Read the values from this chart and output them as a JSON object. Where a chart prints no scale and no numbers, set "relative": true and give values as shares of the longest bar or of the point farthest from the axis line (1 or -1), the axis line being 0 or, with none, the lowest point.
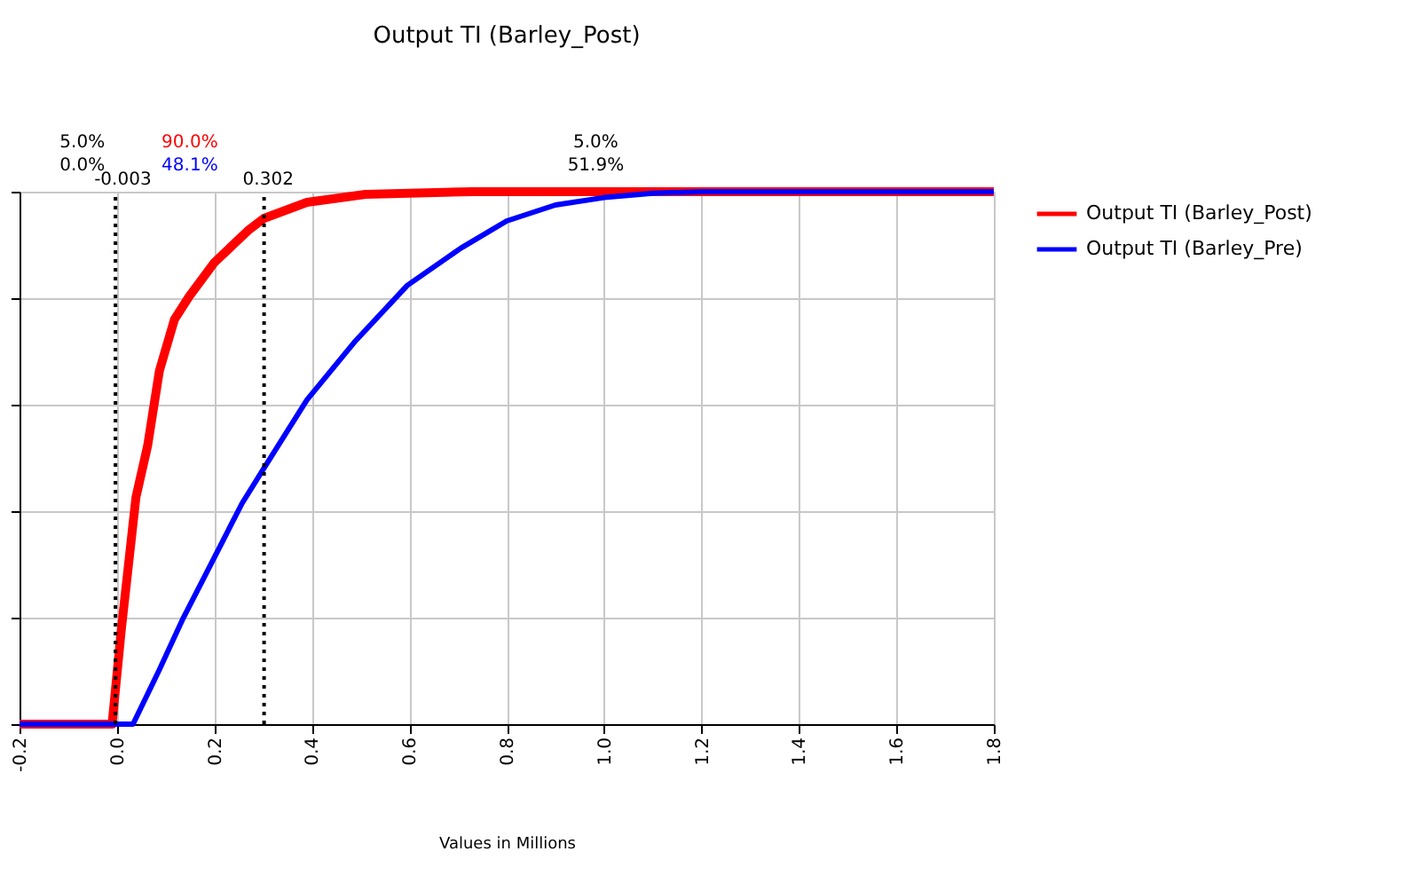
{
  "chart_data": {
    "type": "line",
    "title": "Output TI (Barley_Post)",
    "xlabel": "Values in Millions",
    "xlim": [
      -0.2,
      1.8
    ],
    "xticks": [
      {
        "value": -0.2,
        "label": "-0.2"
      },
      {
        "value": 0,
        "label": "0.0"
      },
      {
        "value": 0.2,
        "label": "0.2"
      },
      {
        "value": 0.4,
        "label": "0.4"
      },
      {
        "value": 0.6,
        "label": "0.6"
      },
      {
        "value": 0.8,
        "label": "0.8"
      },
      {
        "value": 1.0,
        "label": "1.0"
      },
      {
        "value": 1.2,
        "label": "1.2"
      },
      {
        "value": 1.4,
        "label": "1.4"
      },
      {
        "value": 1.6,
        "label": "1.6"
      },
      {
        "value": 1.8,
        "label": "1.8"
      }
    ],
    "relative": true,
    "grid": true,
    "legend": "right",
    "marker": "none",
    "line_style": "solid",
    "series": [
      {
        "name": "Output TI (Barley_Post)",
        "color": "#ff0000",
        "x": [
          -0.2,
          -0.01,
          0.009,
          0.039,
          0.063,
          0.087,
          0.118,
          0.148,
          0.2,
          0.269,
          0.302,
          0.39,
          0.51,
          0.73,
          1.8
        ],
        "values": [
          0,
          0,
          0.178,
          0.426,
          0.523,
          0.663,
          0.76,
          0.803,
          0.867,
          0.927,
          0.95,
          0.98,
          0.995,
          1.0,
          1.0
        ]
      },
      {
        "name": "Output TI (Barley_Pre)",
        "color": "#0000ff",
        "x": [
          -0.2,
          0.033,
          0.087,
          0.136,
          0.2,
          0.257,
          0.302,
          0.39,
          0.487,
          0.596,
          0.706,
          0.8,
          0.9,
          1.0,
          1.1,
          1.2,
          1.8
        ],
        "values": [
          0,
          0,
          0.102,
          0.199,
          0.313,
          0.415,
          0.481,
          0.609,
          0.717,
          0.824,
          0.894,
          0.945,
          0.975,
          0.989,
          0.997,
          1.0,
          1.0
        ]
      }
    ],
    "ref_lines": [
      {
        "axis": "x",
        "value": -0.003,
        "label": "-0.003",
        "color": "#000000",
        "line_style": "dotted"
      },
      {
        "axis": "x",
        "value": 0.302,
        "label": "0.302",
        "color": "#000000",
        "line_style": "dotted"
      }
    ],
    "annotations": [
      "5.0%",
      "0.0%",
      "90.0%",
      "48.1%",
      "5.0%",
      "51.9%"
    ]
  }
}
